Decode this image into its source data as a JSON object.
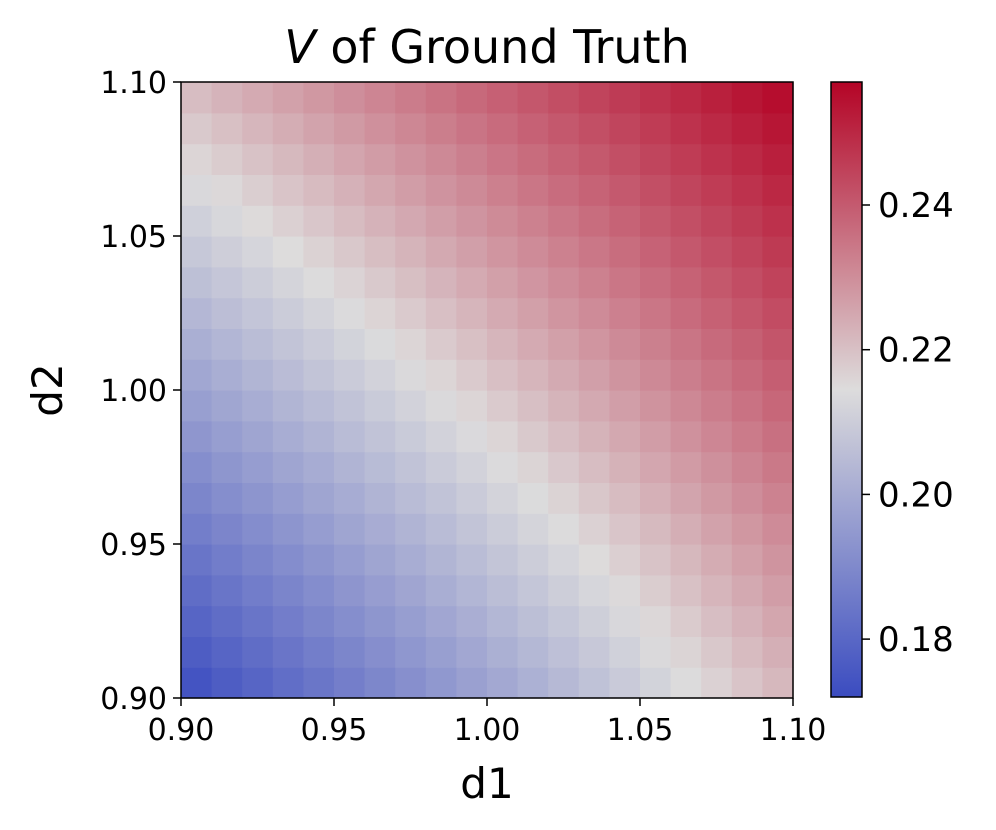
{
  "chart_data": {
    "type": "heatmap",
    "title_prefix": "V",
    "title_suffix": " of Ground Truth",
    "xlabel": "d1",
    "ylabel": "d2",
    "xlim": [
      0.9,
      1.1
    ],
    "ylim": [
      0.9,
      1.1
    ],
    "grid_size": 20,
    "x_ticks": [
      "0.90",
      "0.95",
      "1.00",
      "1.05",
      "1.10"
    ],
    "y_ticks": [
      "0.90",
      "0.95",
      "1.00",
      "1.05",
      "1.10"
    ],
    "colorbar": {
      "min": 0.172,
      "max": 0.257,
      "ticks": [
        "0.18",
        "0.20",
        "0.22",
        "0.24"
      ],
      "colormap": "coolwarm"
    },
    "corner_values": {
      "bottom_left": 0.172,
      "bottom_right": 0.222,
      "top_left": 0.221,
      "top_right": 0.257
    },
    "grid": false,
    "colors": {
      "low": "#3b4cc0",
      "mid": "#dddcdc",
      "high": "#b40426"
    }
  }
}
